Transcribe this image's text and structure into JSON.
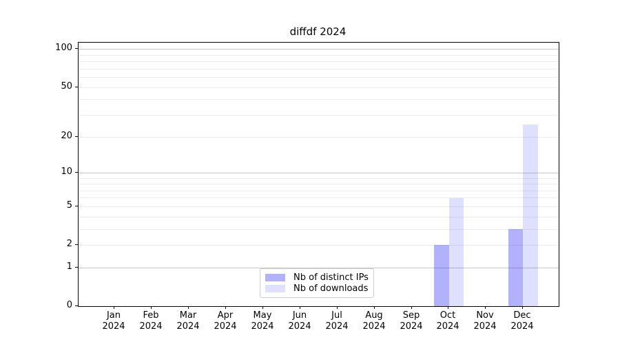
{
  "title": "diffdf 2024",
  "legend": {
    "items": [
      {
        "label": "Nb of distinct IPs",
        "color": "rgba(30,30,245,0.34)"
      },
      {
        "label": "Nb of downloads",
        "color": "rgba(30,30,245,0.14)"
      }
    ]
  },
  "chart_data": {
    "type": "bar",
    "title": "diffdf 2024",
    "categories": [
      "Jan",
      "Feb",
      "Mar",
      "Apr",
      "May",
      "Jun",
      "Jul",
      "Aug",
      "Sep",
      "Oct",
      "Nov",
      "Dec"
    ],
    "category_year": "2024",
    "series": [
      {
        "name": "Nb of distinct IPs",
        "color": "rgba(30,30,245,0.34)",
        "values": [
          0,
          0,
          0,
          0,
          0,
          0,
          0,
          0,
          0,
          2,
          0,
          3
        ]
      },
      {
        "name": "Nb of downloads",
        "color": "rgba(30,30,245,0.14)",
        "values": [
          0,
          0,
          0,
          0,
          0,
          0,
          0,
          0,
          0,
          6,
          0,
          25
        ]
      }
    ],
    "y_scale": "log1p",
    "y_ticks": [
      0,
      1,
      2,
      5,
      10,
      20,
      50,
      100
    ],
    "y_major_gridlines": [
      1,
      10,
      100
    ],
    "y_minor_gridlines": [
      2,
      3,
      4,
      5,
      6,
      7,
      8,
      9,
      20,
      30,
      40,
      50,
      60,
      70,
      80,
      90
    ],
    "ylim": [
      0,
      111
    ],
    "grid": "both",
    "legend_position": "lower center",
    "colors": {
      "grid_major": "#c6c6c6",
      "grid_minor": "#ececec",
      "axis": "#000000",
      "legend_border": "#cccccc",
      "text": "#000000"
    }
  }
}
